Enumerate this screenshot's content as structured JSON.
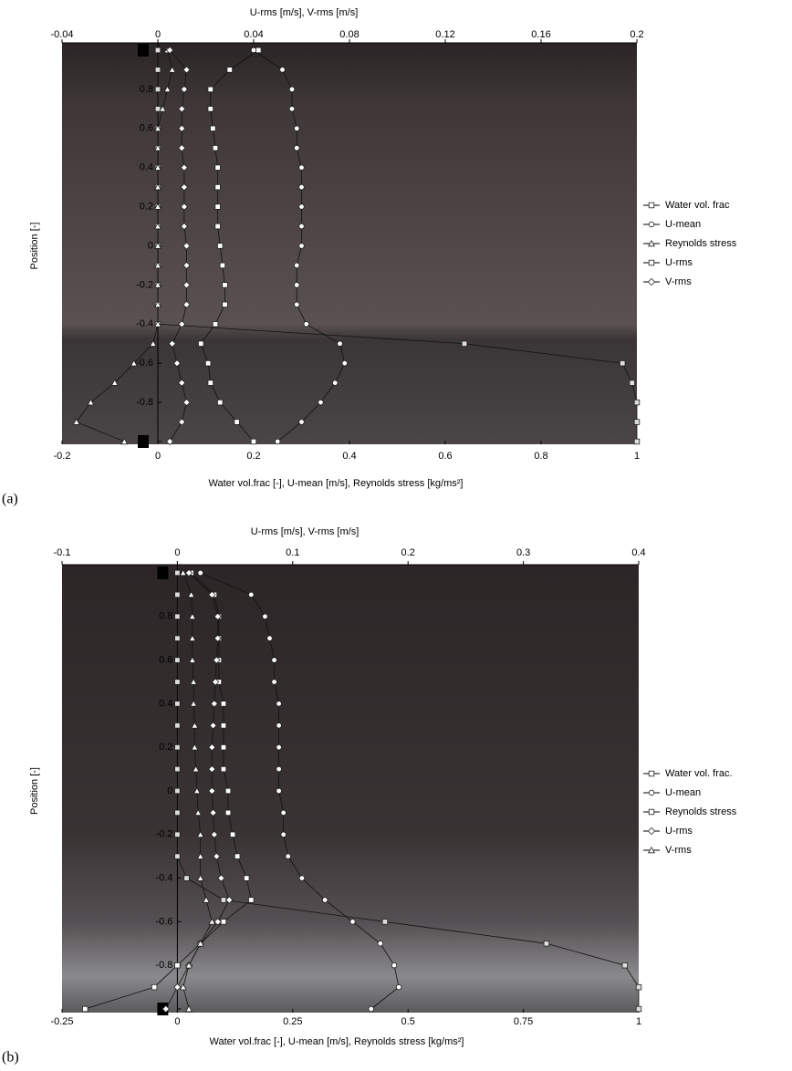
{
  "chart_data": [
    {
      "type": "profile",
      "panel_label": "(a)",
      "title": "U-rms [m/s], V-rms [m/s]",
      "xlabel": "Water vol.frac [-], U-mean [m/s], Reynolds stress [kg/ms²]",
      "ylabel": "Position [-]",
      "xlim": [
        -0.2,
        1
      ],
      "xticks": [
        -0.2,
        0,
        0.2,
        0.4,
        0.6,
        0.8,
        1
      ],
      "x2lim": [
        -0.04,
        0.2
      ],
      "x2ticks": [
        -0.04,
        0,
        0.04,
        0.08,
        0.12,
        0.16,
        0.2
      ],
      "ylim": [
        -1,
        1
      ],
      "yticks": [
        -1,
        -0.8,
        -0.6,
        -0.4,
        -0.2,
        0,
        0.2,
        0.4,
        0.6,
        0.8,
        1
      ],
      "legend": "right",
      "y": [
        1,
        0.9,
        0.8,
        0.7,
        0.6,
        0.5,
        0.4,
        0.3,
        0.2,
        0.1,
        0,
        -0.1,
        -0.2,
        -0.3,
        -0.4,
        -0.5,
        -0.6,
        -0.7,
        -0.8,
        -0.9,
        -1
      ],
      "series": [
        {
          "name": "Water vol. frac",
          "marker": "square",
          "color": "#dddddd",
          "values": [
            0,
            0,
            0,
            0,
            0,
            0,
            0,
            0,
            0,
            0,
            0,
            0,
            0,
            0,
            0,
            0.64,
            0.97,
            0.99,
            1,
            1,
            1
          ]
        },
        {
          "name": "U-mean",
          "marker": "circle",
          "color": "#ffffff",
          "values": [
            0.2,
            0.26,
            0.28,
            0.28,
            0.29,
            0.29,
            0.3,
            0.3,
            0.3,
            0.3,
            0.3,
            0.29,
            0.29,
            0.29,
            0.31,
            0.38,
            0.39,
            0.37,
            0.34,
            0.3,
            0.25
          ]
        },
        {
          "name": "Reynolds stress",
          "marker": "triangle",
          "color": "#ffffff",
          "values": [
            0.02,
            0.03,
            0.02,
            0.01,
            0,
            0,
            0,
            0,
            0,
            0,
            0,
            0,
            0,
            0,
            0,
            -0.01,
            -0.05,
            -0.09,
            -0.14,
            -0.17,
            -0.07
          ]
        },
        {
          "name": "U-rms",
          "marker": "square",
          "color": "#ffffff",
          "axis": "x2",
          "values": [
            0.042,
            0.03,
            0.022,
            0.022,
            0.023,
            0.024,
            0.025,
            0.025,
            0.025,
            0.025,
            0.026,
            0.027,
            0.028,
            0.028,
            0.024,
            0.018,
            0.021,
            0.022,
            0.026,
            0.033,
            0.04
          ]
        },
        {
          "name": "V-rms",
          "marker": "diamond",
          "color": "#ffffff",
          "axis": "x2",
          "values": [
            0.005,
            0.012,
            0.011,
            0.01,
            0.01,
            0.01,
            0.011,
            0.011,
            0.011,
            0.011,
            0.012,
            0.012,
            0.012,
            0.012,
            0.01,
            0.006,
            0.008,
            0.01,
            0.012,
            0.01,
            0.005
          ]
        }
      ]
    },
    {
      "type": "profile",
      "panel_label": "(b)",
      "title": "U-rms [m/s], V-rms [m/s]",
      "xlabel": "Water vol.frac [-], U-mean [m/s], Reynolds stress [kg/ms²]",
      "ylabel": "Position [-]",
      "xlim": [
        -0.25,
        1
      ],
      "xticks": [
        -0.25,
        0,
        0.25,
        0.5,
        0.75,
        1
      ],
      "x2lim": [
        -0.1,
        0.4
      ],
      "x2ticks": [
        -0.1,
        0,
        0.1,
        0.2,
        0.3,
        0.4
      ],
      "ylim": [
        -1,
        1
      ],
      "yticks": [
        -1,
        -0.8,
        -0.6,
        -0.4,
        -0.2,
        0,
        0.2,
        0.4,
        0.6,
        0.8,
        1
      ],
      "legend": "right",
      "y": [
        1,
        0.9,
        0.8,
        0.7,
        0.6,
        0.5,
        0.4,
        0.3,
        0.2,
        0.1,
        0,
        -0.1,
        -0.2,
        -0.3,
        -0.4,
        -0.5,
        -0.6,
        -0.7,
        -0.8,
        -0.9,
        -1
      ],
      "series": [
        {
          "name": "Water vol. frac.",
          "marker": "square",
          "color": "#dddddd",
          "values": [
            0,
            0,
            0,
            0,
            0,
            0,
            0,
            0,
            0,
            0,
            0,
            0,
            0,
            0,
            0.02,
            0.1,
            0.45,
            0.8,
            0.97,
            1,
            1
          ]
        },
        {
          "name": "U-mean",
          "marker": "circle",
          "color": "#ffffff",
          "values": [
            0.05,
            0.16,
            0.19,
            0.2,
            0.21,
            0.21,
            0.22,
            0.22,
            0.22,
            0.22,
            0.22,
            0.23,
            0.23,
            0.24,
            0.27,
            0.32,
            0.38,
            0.44,
            0.47,
            0.48,
            0.42
          ]
        },
        {
          "name": "Reynolds stress",
          "marker": "square",
          "color": "#ffffff",
          "values": [
            0.03,
            0.08,
            0.09,
            0.09,
            0.09,
            0.09,
            0.1,
            0.1,
            0.1,
            0.1,
            0.11,
            0.11,
            0.12,
            0.13,
            0.15,
            0.16,
            0.1,
            0.05,
            0,
            -0.05,
            -0.2
          ]
        },
        {
          "name": "U-rms",
          "marker": "diamond",
          "color": "#ffffff",
          "axis": "x2",
          "values": [
            0.01,
            0.03,
            0.035,
            0.035,
            0.034,
            0.033,
            0.032,
            0.031,
            0.03,
            0.03,
            0.03,
            0.031,
            0.032,
            0.034,
            0.038,
            0.045,
            0.035,
            0.02,
            0.01,
            0.0,
            -0.01
          ]
        },
        {
          "name": "V-rms",
          "marker": "triangle",
          "color": "#ffffff",
          "axis": "x2",
          "values": [
            0.005,
            0.012,
            0.013,
            0.013,
            0.013,
            0.014,
            0.014,
            0.015,
            0.015,
            0.016,
            0.017,
            0.018,
            0.02,
            0.02,
            0.02,
            0.025,
            0.03,
            0.02,
            0.01,
            0.005,
            0.01
          ]
        }
      ]
    }
  ]
}
